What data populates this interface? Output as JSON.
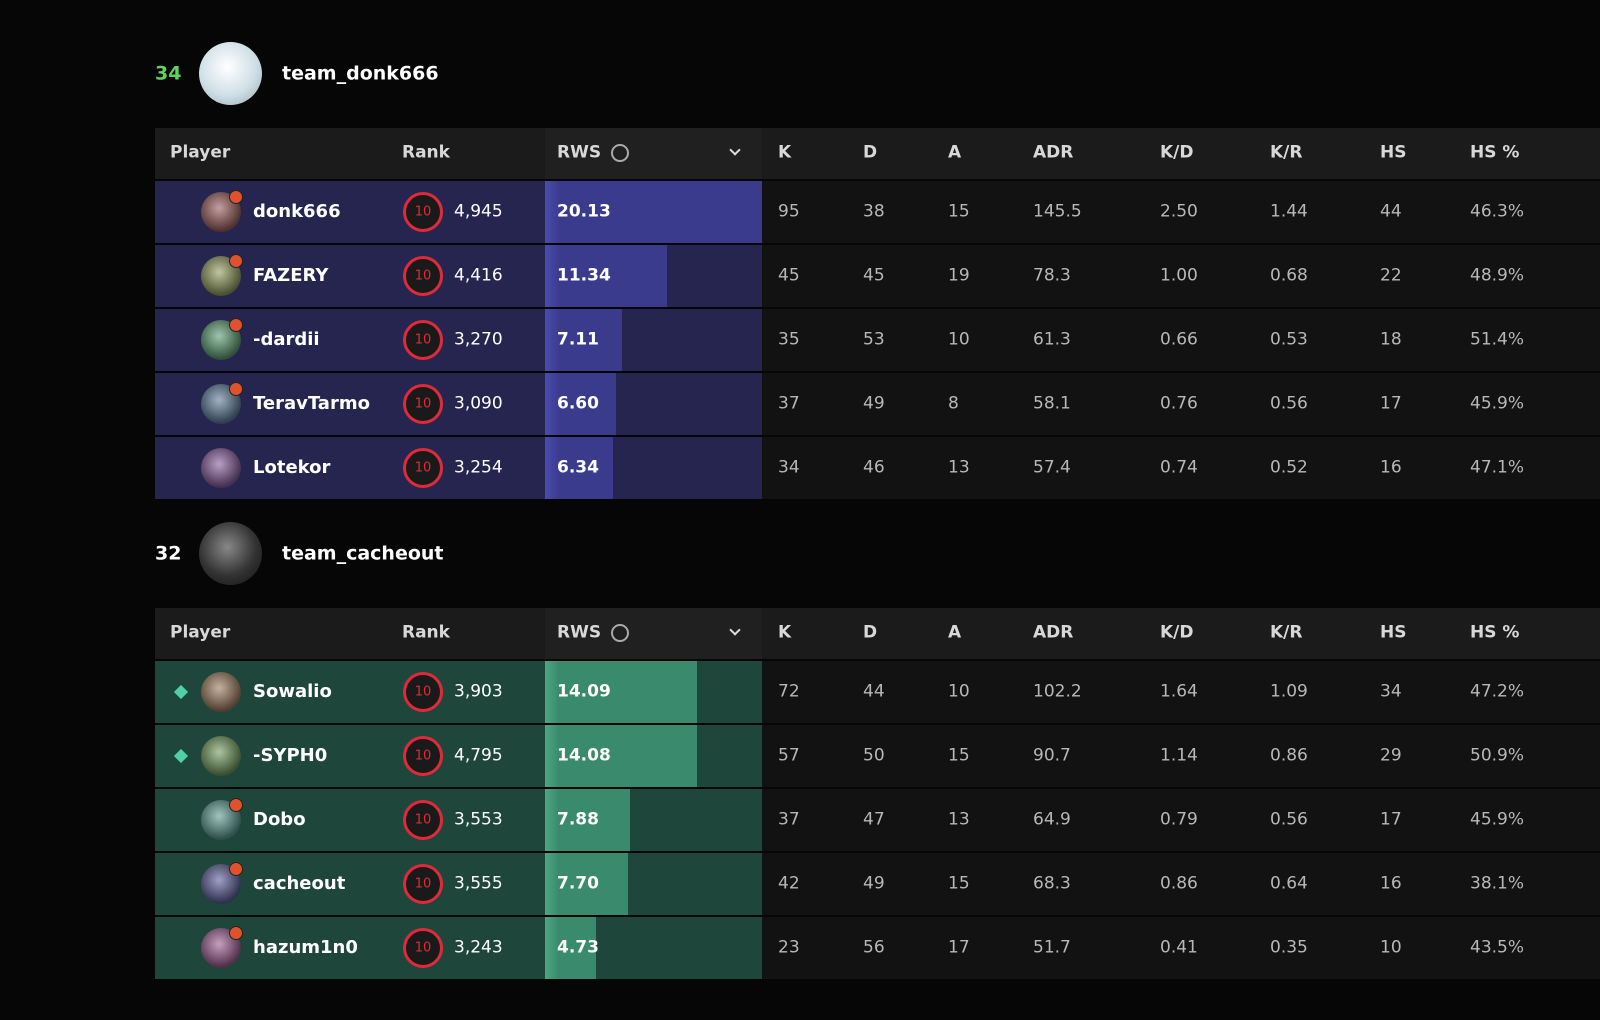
{
  "columns": [
    "Player",
    "Rank",
    "RWS",
    "K",
    "D",
    "A",
    "ADR",
    "K/D",
    "K/R",
    "HS",
    "HS %"
  ],
  "teams": [
    {
      "score": 34,
      "score_color": "#5fd35f",
      "name": "team_donk666",
      "row_color": "#25254f",
      "bar_color": "#3b3b8e",
      "bar_edge": "#4b4bb0",
      "rows": [
        {
          "icon": "star",
          "player": "donk666",
          "level": 10,
          "rank": "4,945",
          "rws": "20.13",
          "stats": [
            "95",
            "38",
            "15",
            "145.5",
            "2.50",
            "1.44",
            "44",
            "46.3%"
          ]
        },
        {
          "icon": "star",
          "player": "FAZERY",
          "level": 10,
          "rank": "4,416",
          "rws": "11.34",
          "stats": [
            "45",
            "45",
            "19",
            "78.3",
            "1.00",
            "0.68",
            "22",
            "48.9%"
          ]
        },
        {
          "icon": "star",
          "player": "-dardii",
          "level": 10,
          "rank": "3,270",
          "rws": "7.11",
          "stats": [
            "35",
            "53",
            "10",
            "61.3",
            "0.66",
            "0.53",
            "18",
            "51.4%"
          ]
        },
        {
          "icon": "star",
          "player": "TeravTarmo",
          "level": 10,
          "rank": "3,090",
          "rws": "6.60",
          "stats": [
            "37",
            "49",
            "8",
            "58.1",
            "0.76",
            "0.56",
            "17",
            "45.9%"
          ]
        },
        {
          "icon": "none",
          "player": "Lotekor",
          "level": 10,
          "rank": "3,254",
          "rws": "6.34",
          "stats": [
            "34",
            "46",
            "13",
            "57.4",
            "0.74",
            "0.52",
            "16",
            "47.1%"
          ]
        }
      ]
    },
    {
      "score": 32,
      "score_color": "#ffffff",
      "name": "team_cacheout",
      "row_color": "#1e463a",
      "bar_color": "#3a8a6d",
      "bar_edge": "#4aa882",
      "rows": [
        {
          "icon": "diamond",
          "player": "Sowalio",
          "level": 10,
          "rank": "3,903",
          "rws": "14.09",
          "stats": [
            "72",
            "44",
            "10",
            "102.2",
            "1.64",
            "1.09",
            "34",
            "47.2%"
          ]
        },
        {
          "icon": "diamond",
          "player": "-SYPH0",
          "level": 10,
          "rank": "4,795",
          "rws": "14.08",
          "stats": [
            "57",
            "50",
            "15",
            "90.7",
            "1.14",
            "0.86",
            "29",
            "50.9%"
          ]
        },
        {
          "icon": "star",
          "player": "Dobo",
          "level": 10,
          "rank": "3,553",
          "rws": "7.88",
          "stats": [
            "37",
            "47",
            "13",
            "64.9",
            "0.79",
            "0.56",
            "17",
            "45.9%"
          ]
        },
        {
          "icon": "star",
          "player": "cacheout",
          "level": 10,
          "rank": "3,555",
          "rws": "7.70",
          "stats": [
            "42",
            "49",
            "15",
            "68.3",
            "0.86",
            "0.64",
            "16",
            "38.1%"
          ]
        },
        {
          "icon": "star",
          "player": "hazum1n0",
          "level": 10,
          "rank": "3,243",
          "rws": "4.73",
          "stats": [
            "23",
            "56",
            "17",
            "51.7",
            "0.41",
            "0.35",
            "10",
            "43.5%"
          ]
        }
      ]
    }
  ]
}
